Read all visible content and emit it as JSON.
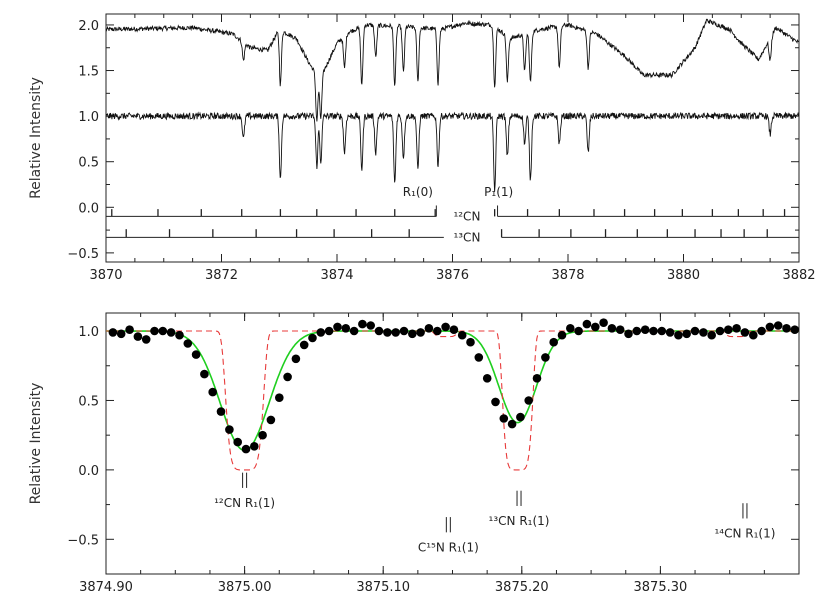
{
  "chart_data": [
    {
      "type": "line",
      "title": "",
      "xlabel": "",
      "ylabel": "Relative Intensity",
      "xlim": [
        3870,
        3882
      ],
      "ylim": [
        -0.6,
        2.12
      ],
      "x_ticks": [
        {
          "value": 3870,
          "label": "3870"
        },
        {
          "value": 3872,
          "label": "3872"
        },
        {
          "value": 3874,
          "label": "3874"
        },
        {
          "value": 3876,
          "label": "3876"
        },
        {
          "value": 3878,
          "label": "3878"
        },
        {
          "value": 3880,
          "label": "3880"
        },
        {
          "value": 3882,
          "label": "3882"
        }
      ],
      "y_ticks": [
        {
          "value": -0.5,
          "label": "−0.5"
        },
        {
          "value": 0.0,
          "label": "0.0"
        },
        {
          "value": 0.5,
          "label": "0.5"
        },
        {
          "value": 1.0,
          "label": "1.0"
        },
        {
          "value": 1.5,
          "label": "1.5"
        },
        {
          "value": 2.0,
          "label": "2.0"
        }
      ],
      "series_profiles": [
        {
          "continuum": [
            [
              3870.0,
              1.95
            ],
            [
              3871.5,
              1.97
            ],
            [
              3872.2,
              1.9
            ],
            [
              3872.5,
              1.75
            ],
            [
              3872.8,
              1.72
            ],
            [
              3873.0,
              1.95
            ],
            [
              3873.3,
              1.85
            ],
            [
              3873.5,
              1.6
            ],
            [
              3873.7,
              1.4
            ],
            [
              3874.0,
              1.8
            ],
            [
              3874.2,
              1.92
            ],
            [
              3874.5,
              2.0
            ],
            [
              3875.2,
              1.98
            ],
            [
              3875.8,
              1.95
            ],
            [
              3876.2,
              2.02
            ],
            [
              3876.7,
              2.0
            ],
            [
              3877.0,
              1.85
            ],
            [
              3877.5,
              1.95
            ],
            [
              3878.0,
              2.0
            ],
            [
              3878.5,
              1.9
            ],
            [
              3879.0,
              1.65
            ],
            [
              3879.3,
              1.45
            ],
            [
              3879.8,
              1.45
            ],
            [
              3880.2,
              1.75
            ],
            [
              3880.4,
              2.05
            ],
            [
              3880.8,
              1.95
            ],
            [
              3881.0,
              1.8
            ],
            [
              3881.3,
              1.62
            ],
            [
              3881.6,
              1.97
            ],
            [
              3882.0,
              1.8
            ]
          ],
          "lines": [
            [
              3872.38,
              0.2
            ],
            [
              3873.02,
              0.6
            ],
            [
              3873.65,
              0.5
            ],
            [
              3873.72,
              0.45
            ],
            [
              3874.13,
              0.35
            ],
            [
              3874.43,
              0.65
            ],
            [
              3874.67,
              0.35
            ],
            [
              3875.0,
              0.65
            ],
            [
              3875.15,
              0.5
            ],
            [
              3875.4,
              0.6
            ],
            [
              3875.75,
              0.6
            ],
            [
              3876.73,
              0.65
            ],
            [
              3876.95,
              0.5
            ],
            [
              3877.25,
              0.4
            ],
            [
              3877.35,
              0.55
            ],
            [
              3877.85,
              0.45
            ],
            [
              3878.35,
              0.4
            ],
            [
              3881.5,
              0.25
            ]
          ],
          "noise": 0.025
        },
        {
          "continuum": [
            [
              3870.0,
              1.0
            ],
            [
              3882.0,
              1.0
            ]
          ],
          "lines": [
            [
              3872.38,
              0.25
            ],
            [
              3873.02,
              0.7
            ],
            [
              3873.65,
              0.55
            ],
            [
              3873.72,
              0.5
            ],
            [
              3874.13,
              0.4
            ],
            [
              3874.43,
              0.58
            ],
            [
              3874.67,
              0.4
            ],
            [
              3875.0,
              0.74
            ],
            [
              3875.15,
              0.45
            ],
            [
              3875.4,
              0.6
            ],
            [
              3875.75,
              0.55
            ],
            [
              3876.73,
              0.82
            ],
            [
              3876.95,
              0.45
            ],
            [
              3877.25,
              0.3
            ],
            [
              3877.35,
              0.7
            ],
            [
              3877.85,
              0.3
            ],
            [
              3878.35,
              0.4
            ],
            [
              3881.5,
              0.2
            ]
          ],
          "noise": 0.035
        }
      ],
      "line_lists": [
        {
          "name": "12CN",
          "y": -0.1,
          "y_top": -0.02,
          "gap": [
            3875.72,
            3876.78
          ],
          "ticks": [
            3870.1,
            3870.9,
            3871.65,
            3872.35,
            3873.02,
            3873.65,
            3874.33,
            3875.0,
            3875.7,
            3876.73,
            3877.3,
            3877.85,
            3878.45,
            3878.98,
            3879.5,
            3879.98,
            3880.5,
            3880.95,
            3881.38,
            3881.75
          ]
        },
        {
          "name": "13CN",
          "y": -0.33,
          "y_top": -0.24,
          "gap": [
            3875.85,
            3876.85
          ],
          "ticks": [
            3870.35,
            3871.1,
            3871.85,
            3872.6,
            3873.3,
            3873.95,
            3874.6,
            3875.25,
            3876.85,
            3877.5,
            3878.05,
            3878.65,
            3879.2,
            3879.72,
            3880.2,
            3880.65,
            3881.05,
            3881.45
          ]
        }
      ],
      "labels": [
        {
          "text": "R₁(0)",
          "x": 3875.4,
          "y": 0.17
        },
        {
          "text": "P₁(1)",
          "x": 3876.8,
          "y": 0.17
        },
        {
          "text": "¹²CN",
          "x": 3876.25,
          "y": -0.1
        },
        {
          "text": "¹³CN",
          "x": 3876.25,
          "y": -0.33
        }
      ]
    },
    {
      "type": "scatter",
      "title": "",
      "xlabel": "",
      "ylabel": "Relative Intensity",
      "xlim": [
        3874.9,
        3875.4
      ],
      "ylim": [
        -0.75,
        1.13
      ],
      "x_ticks": [
        {
          "value": 3874.9,
          "label": "3874.90"
        },
        {
          "value": 3875.0,
          "label": "3875.00"
        },
        {
          "value": 3875.1,
          "label": "3875.10"
        },
        {
          "value": 3875.2,
          "label": "3875.20"
        },
        {
          "value": 3875.3,
          "label": "3875.30"
        }
      ],
      "y_ticks": [
        {
          "value": -0.5,
          "label": "−0.5"
        },
        {
          "value": 0.0,
          "label": "0.0"
        },
        {
          "value": 0.5,
          "label": "0.5"
        },
        {
          "value": 1.0,
          "label": "1.0"
        }
      ],
      "x": [
        3874.905,
        3874.911,
        3874.917,
        3874.923,
        3874.929,
        3874.935,
        3874.941,
        3874.947,
        3874.953,
        3874.959,
        3874.965,
        3874.971,
        3874.977,
        3874.983,
        3874.989,
        3874.995,
        3875.001,
        3875.007,
        3875.013,
        3875.019,
        3875.025,
        3875.031,
        3875.037,
        3875.043,
        3875.049,
        3875.055,
        3875.061,
        3875.067,
        3875.073,
        3875.079,
        3875.085,
        3875.091,
        3875.097,
        3875.103,
        3875.109,
        3875.115,
        3875.121,
        3875.127,
        3875.133,
        3875.139,
        3875.145,
        3875.151,
        3875.157,
        3875.163,
        3875.169,
        3875.175,
        3875.181,
        3875.187,
        3875.193,
        3875.199,
        3875.205,
        3875.211,
        3875.217,
        3875.223,
        3875.229,
        3875.235,
        3875.241,
        3875.247,
        3875.253,
        3875.259,
        3875.265,
        3875.271,
        3875.277,
        3875.283,
        3875.289,
        3875.295,
        3875.301,
        3875.307,
        3875.313,
        3875.319,
        3875.325,
        3875.331,
        3875.337,
        3875.343,
        3875.349,
        3875.355,
        3875.361,
        3875.367,
        3875.373,
        3875.379,
        3875.385,
        3875.391,
        3875.397
      ],
      "y": [
        0.99,
        0.98,
        1.01,
        0.96,
        0.94,
        1.0,
        1.0,
        0.99,
        0.97,
        0.91,
        0.83,
        0.69,
        0.56,
        0.42,
        0.29,
        0.2,
        0.15,
        0.17,
        0.25,
        0.36,
        0.52,
        0.67,
        0.8,
        0.9,
        0.95,
        0.99,
        1.0,
        1.03,
        1.02,
        1.0,
        1.05,
        1.04,
        1.0,
        0.99,
        0.99,
        1.0,
        0.98,
        0.99,
        1.02,
        1.0,
        1.03,
        1.01,
        0.97,
        0.92,
        0.81,
        0.66,
        0.49,
        0.37,
        0.33,
        0.38,
        0.5,
        0.66,
        0.81,
        0.92,
        0.97,
        1.02,
        1.0,
        1.05,
        1.03,
        1.06,
        1.02,
        1.01,
        0.98,
        1.0,
        1.01,
        1.0,
        1.0,
        0.99,
        0.97,
        0.98,
        1.0,
        0.99,
        0.97,
        1.0,
        1.01,
        1.02,
        0.99,
        0.97,
        1.0,
        1.03,
        1.04,
        1.02,
        1.01
      ],
      "fits": [
        {
          "color": "#1fcf1f",
          "style": "solid",
          "components": [
            [
              3875.0,
              0.86,
              0.0175
            ],
            [
              3875.197,
              0.66,
              0.0135
            ]
          ]
        },
        {
          "color": "#e83b3b",
          "style": "dashed",
          "components": [
            [
              3875.0,
              1.0,
              0.0102
            ],
            [
              3875.197,
              1.0,
              0.0082
            ],
            [
              3875.145,
              0.04,
              0.006
            ],
            [
              3875.355,
              0.04,
              0.006
            ]
          ]
        }
      ],
      "markers": [
        {
          "x": 3875.0,
          "label_lines": [
            "¹²CN  R₁(1)"
          ],
          "bar_top": -0.02,
          "bar_bot": -0.13,
          "label_y": -0.24
        },
        {
          "x": 3875.147,
          "label_lines": [
            "C¹⁵N  R₁(1)"
          ],
          "bar_top": -0.34,
          "bar_bot": -0.45,
          "label_y": -0.56
        },
        {
          "x": 3875.198,
          "label_lines": [
            "¹³CN  R₁(1)"
          ],
          "bar_top": -0.15,
          "bar_bot": -0.26,
          "label_y": -0.37
        },
        {
          "x": 3875.361,
          "label_lines": [
            "¹⁴CN  R₁(1)"
          ],
          "bar_top": -0.24,
          "bar_bot": -0.35,
          "label_y": -0.46
        }
      ]
    }
  ]
}
